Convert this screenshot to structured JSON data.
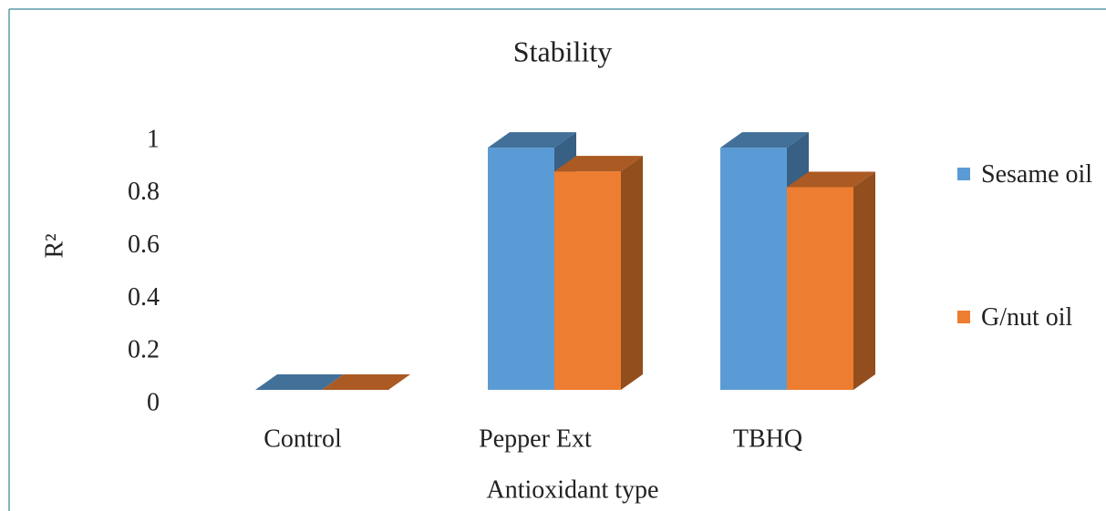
{
  "chart_data": {
    "type": "bar3d",
    "title": "Stability",
    "x_label": "Antioxidant type",
    "y_label": "R²",
    "categories": [
      "Control",
      "Pepper Ext",
      "TBHQ"
    ],
    "series": [
      {
        "name": "Sesame oil",
        "color": "#5b9bd5",
        "values": [
          0,
          0.92,
          0.92
        ]
      },
      {
        "name": "G/nut oil",
        "color": "#ed7d31",
        "values": [
          0,
          0.83,
          0.77
        ]
      }
    ],
    "ylim": [
      0,
      1
    ],
    "yticks": [
      0,
      0.2,
      0.4,
      0.6,
      0.8,
      1
    ],
    "legend": "right"
  }
}
